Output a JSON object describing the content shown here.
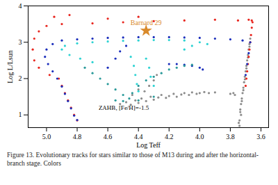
{
  "chart_data": {
    "type": "scatter",
    "xlabel": "Log Teff",
    "ylabel": "Log L/Lsun",
    "caption": "Figure 13. Evolutionary tracks for stars similar to those of M13 during and after the horizontal-branch stage. Colors",
    "xlim": [
      5.12,
      3.55
    ],
    "ylim": [
      0.65,
      4.0
    ],
    "xticks": [
      {
        "value": 5.0,
        "label": "5.0"
      },
      4.8,
      4.6,
      4.4,
      4.2,
      {
        "value": 4.0,
        "label": "4.0"
      },
      3.8,
      3.6
    ],
    "yticks": [
      1,
      2,
      3,
      4
    ],
    "grid": false,
    "annotations": [
      {
        "text": "ZAHB, [Fe/H]=-1.5",
        "x": 4.66,
        "y": 1.2
      }
    ],
    "series": [
      {
        "color": "#8c8c8c",
        "marker": "circle",
        "x": [
          4.52,
          4.48,
          4.45,
          4.42,
          4.4,
          4.38,
          4.35,
          4.32,
          4.3,
          4.27,
          4.25,
          4.22,
          4.2,
          4.17,
          4.15,
          4.12,
          4.1,
          4.07,
          4.05,
          4.02,
          4.0,
          3.97,
          3.94,
          3.9,
          4.36,
          4.33,
          4.3,
          4.4,
          4.28,
          4.44,
          3.74,
          3.74,
          3.73,
          3.735,
          3.73,
          3.725,
          3.72,
          3.715,
          3.71,
          3.705,
          3.7,
          3.695,
          3.69,
          3.685,
          3.68,
          3.675,
          3.67,
          3.745,
          3.735,
          3.725,
          3.715,
          3.705,
          3.695,
          3.685,
          3.675,
          3.77,
          3.78,
          3.8
        ],
        "values": [
          1.3,
          1.35,
          1.28,
          1.4,
          1.33,
          1.45,
          1.38,
          1.5,
          1.42,
          1.48,
          1.55,
          1.47,
          1.52,
          1.58,
          1.5,
          1.56,
          1.6,
          1.55,
          1.62,
          1.58,
          1.6,
          1.63,
          1.6,
          1.62,
          1.65,
          1.8,
          1.95,
          1.7,
          2.1,
          1.55,
          0.7,
          0.85,
          1.0,
          1.15,
          1.3,
          1.45,
          1.6,
          1.75,
          1.9,
          2.05,
          2.2,
          2.35,
          2.5,
          2.65,
          2.8,
          2.95,
          3.1,
          0.78,
          1.08,
          1.38,
          1.68,
          1.98,
          2.28,
          2.58,
          2.88,
          1.55,
          1.6,
          1.58
        ]
      },
      {
        "color": "#e8261f",
        "marker": "circle",
        "x": [
          3.7,
          3.695,
          3.69,
          3.685,
          3.68,
          3.675,
          3.67,
          3.665,
          3.66,
          3.655,
          3.66,
          3.68,
          3.75,
          3.9,
          4.1,
          4.3,
          4.5,
          4.7,
          4.9,
          5.0,
          5.05,
          5.08,
          5.09,
          5.08,
          5.05,
          4.98,
          4.95,
          4.85,
          4.6,
          4.4,
          4.92,
          4.9,
          4.88,
          4.86,
          4.84,
          4.82,
          4.8
        ],
        "values": [
          1.8,
          2.0,
          2.2,
          2.4,
          2.6,
          2.8,
          3.0,
          3.2,
          3.4,
          3.55,
          3.6,
          3.62,
          3.6,
          3.62,
          3.6,
          3.58,
          3.55,
          3.52,
          3.5,
          3.45,
          3.3,
          3.1,
          2.8,
          2.5,
          2.3,
          2.1,
          3.7,
          3.75,
          3.65,
          3.7,
          2.0,
          1.8,
          1.6,
          1.4,
          1.2,
          1.0,
          0.85
        ]
      },
      {
        "color": "#1a2dbb",
        "marker": "circle",
        "x": [
          3.72,
          3.8,
          3.9,
          4.0,
          4.1,
          4.2,
          4.3,
          4.4,
          4.5,
          4.6,
          4.7,
          4.8,
          4.9,
          4.96,
          5.0,
          5.01,
          4.99,
          4.96,
          4.93,
          4.9,
          4.88,
          4.86,
          4.84,
          4.82,
          4.8,
          4.6,
          4.55,
          4.52,
          4.48,
          4.2,
          4.15,
          4.1,
          4.05,
          4.0,
          3.98,
          3.7,
          3.69,
          3.68,
          3.67
        ],
        "values": [
          3.05,
          3.08,
          3.1,
          3.12,
          3.13,
          3.14,
          3.14,
          3.14,
          3.13,
          3.12,
          3.1,
          3.08,
          3.05,
          2.95,
          2.8,
          2.6,
          2.4,
          2.2,
          2.0,
          1.78,
          1.58,
          1.38,
          1.18,
          0.98,
          0.86,
          2.3,
          2.55,
          2.75,
          2.9,
          2.4,
          2.4,
          2.38,
          2.35,
          2.3,
          2.25,
          2.1,
          2.4,
          2.7,
          3.0
        ]
      },
      {
        "color": "#2ed3d3",
        "marker": "circle",
        "x": [
          4.0,
          4.1,
          4.2,
          4.3,
          4.4,
          4.5,
          4.6,
          4.7,
          4.8,
          4.88,
          4.9,
          4.85,
          4.78,
          4.7,
          4.45,
          4.43,
          4.42,
          4.41,
          4.4,
          4.35,
          4.33,
          4.32,
          4.3,
          4.1,
          4.05,
          3.95
        ],
        "values": [
          3.0,
          3.05,
          3.06,
          3.06,
          3.05,
          3.04,
          3.02,
          3.0,
          2.97,
          2.9,
          2.8,
          2.65,
          2.55,
          2.45,
          2.6,
          2.35,
          2.1,
          1.85,
          1.65,
          2.55,
          2.3,
          2.05,
          1.8,
          2.8,
          2.9,
          2.95
        ]
      },
      {
        "color": "#2a9a9a",
        "marker": "circle",
        "x": [
          4.75,
          4.7,
          4.65,
          4.6,
          4.55,
          4.5,
          4.46,
          4.44,
          4.4,
          4.35,
          4.3,
          4.25,
          4.2,
          4.15,
          4.1,
          4.05,
          4.55,
          4.5,
          4.4,
          4.3
        ],
        "values": [
          2.3,
          2.15,
          2.0,
          1.85,
          1.7,
          1.55,
          1.45,
          1.6,
          1.8,
          1.95,
          2.05,
          2.15,
          2.25,
          2.3,
          2.35,
          2.38,
          1.4,
          1.38,
          1.4,
          1.5
        ]
      },
      {
        "name": "Barnard 29",
        "color": "#d98a2b",
        "marker": "star",
        "x": [
          4.35
        ],
        "values": [
          3.32
        ]
      }
    ]
  }
}
